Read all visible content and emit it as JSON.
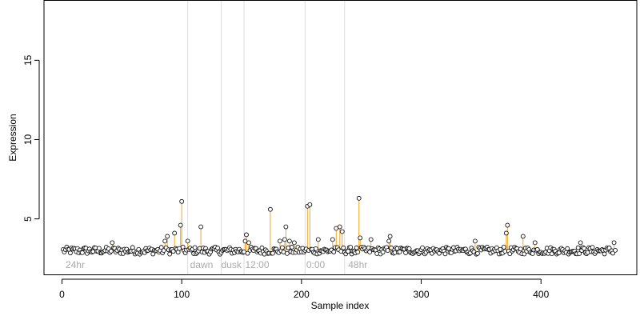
{
  "chart_data": {
    "type": "scatter",
    "xlabel": "Sample index",
    "ylabel": "Expression",
    "xlim": [
      -15,
      480
    ],
    "ylim": [
      1.5,
      18.8
    ],
    "x_ticks": [
      0,
      100,
      200,
      300,
      400
    ],
    "y_ticks": [
      5,
      10,
      15
    ],
    "grid": false,
    "section_boundaries": [
      105,
      133,
      152,
      203,
      236
    ],
    "section_labels": [
      {
        "text": "24hr",
        "x": 3
      },
      {
        "text": "dawn",
        "x": 107
      },
      {
        "text": "dusk",
        "x": 133
      },
      {
        "text": "12:00",
        "x": 153
      },
      {
        "text": "0:00",
        "x": 204
      },
      {
        "text": "48hr",
        "x": 239
      }
    ],
    "section_label_y": 1.9,
    "baseline": 3.0,
    "n_samples": 462,
    "highlight_color": "#f5a623",
    "point_fill": "#ffffff",
    "point_stroke": "#000000",
    "divider_color": "#dddddd",
    "outliers": [
      {
        "x": 42,
        "y": 3.5
      },
      {
        "x": 86,
        "y": 3.6
      },
      {
        "x": 88,
        "y": 3.9
      },
      {
        "x": 94,
        "y": 4.1
      },
      {
        "x": 99,
        "y": 4.6
      },
      {
        "x": 100,
        "y": 6.1
      },
      {
        "x": 105,
        "y": 3.6
      },
      {
        "x": 116,
        "y": 4.5
      },
      {
        "x": 153,
        "y": 3.6
      },
      {
        "x": 154,
        "y": 4.0
      },
      {
        "x": 156,
        "y": 3.5
      },
      {
        "x": 174,
        "y": 5.6
      },
      {
        "x": 182,
        "y": 3.6
      },
      {
        "x": 186,
        "y": 3.7
      },
      {
        "x": 187,
        "y": 4.5
      },
      {
        "x": 190,
        "y": 3.6
      },
      {
        "x": 194,
        "y": 3.5
      },
      {
        "x": 205,
        "y": 5.8
      },
      {
        "x": 207,
        "y": 5.9
      },
      {
        "x": 214,
        "y": 3.7
      },
      {
        "x": 226,
        "y": 3.7
      },
      {
        "x": 229,
        "y": 4.4
      },
      {
        "x": 232,
        "y": 4.5
      },
      {
        "x": 234,
        "y": 4.2
      },
      {
        "x": 248,
        "y": 6.3
      },
      {
        "x": 249,
        "y": 3.8
      },
      {
        "x": 258,
        "y": 3.7
      },
      {
        "x": 273,
        "y": 3.6
      },
      {
        "x": 274,
        "y": 3.9
      },
      {
        "x": 345,
        "y": 3.6
      },
      {
        "x": 371,
        "y": 4.1
      },
      {
        "x": 372,
        "y": 4.6
      },
      {
        "x": 385,
        "y": 3.9
      },
      {
        "x": 395,
        "y": 3.5
      },
      {
        "x": 433,
        "y": 3.5
      },
      {
        "x": 461,
        "y": 3.5
      }
    ]
  }
}
